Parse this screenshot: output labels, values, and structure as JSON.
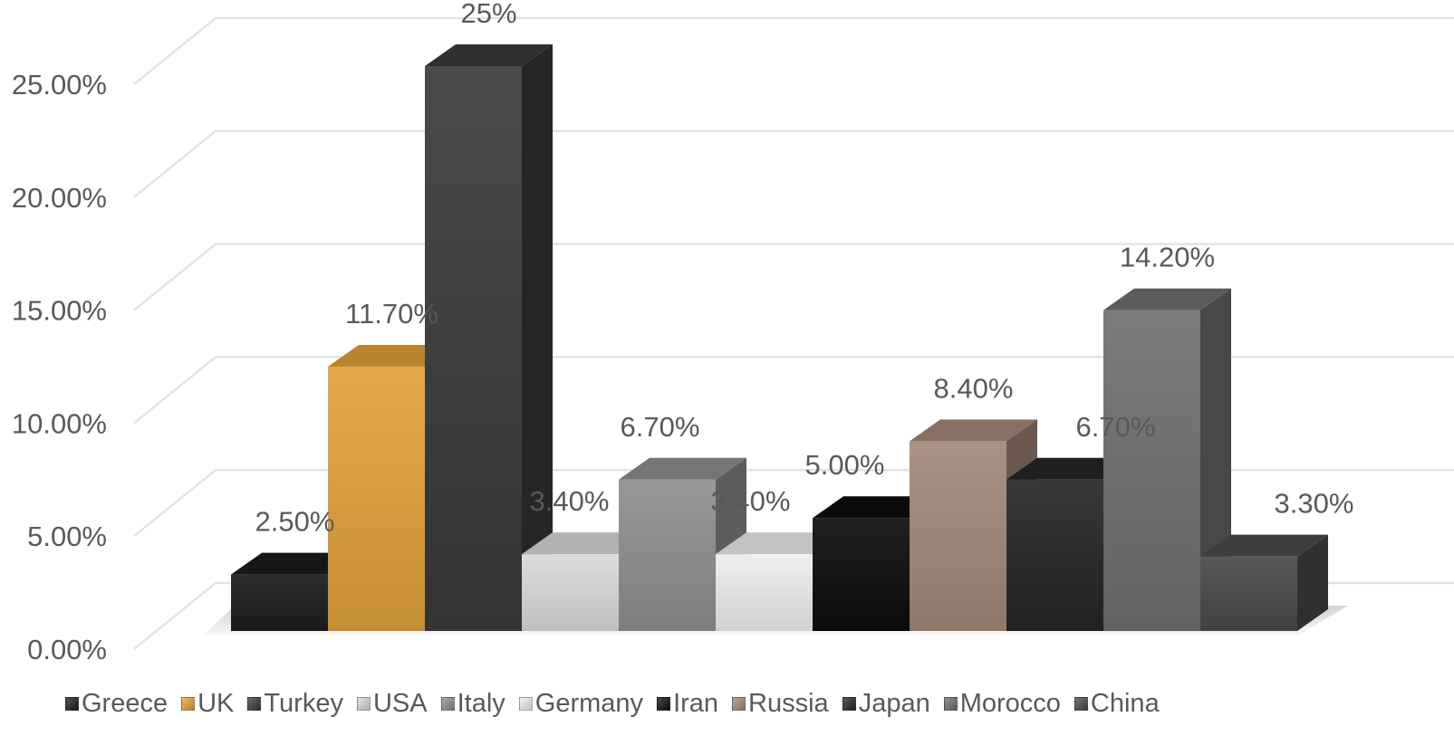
{
  "chart_data": {
    "type": "bar",
    "categories": [
      "Greece",
      "UK",
      "Turkey",
      "USA",
      "Italy",
      "Germany",
      "Iran",
      "Russia",
      "Japan",
      "Morocco",
      "China"
    ],
    "values": [
      2.5,
      11.7,
      25,
      3.4,
      6.7,
      3.4,
      5.0,
      8.4,
      6.7,
      14.2,
      3.3
    ],
    "data_labels": [
      "2.50%",
      "11.70%",
      "25%",
      "3.40%",
      "6.70%",
      "3.40%",
      "5.00%",
      "8.40%",
      "6.70%",
      "14.20%",
      "3.30%"
    ],
    "colors": [
      "#1c1c1c",
      "#e2a23a",
      "#3a3a3a",
      "#d9d9d9",
      "#8f8f8f",
      "#eeeeee",
      "#0d0d0d",
      "#a38878",
      "#262626",
      "#6f6f6f",
      "#4a4a4a"
    ],
    "ylim": [
      0,
      25
    ],
    "yticks": [
      "0.00%",
      "5.00%",
      "10.00%",
      "15.00%",
      "20.00%",
      "25.00%"
    ],
    "ytick_values": [
      0,
      5,
      10,
      15,
      20,
      25
    ],
    "grid": true,
    "legend": "bottom",
    "style": "3d-clustered-column"
  }
}
